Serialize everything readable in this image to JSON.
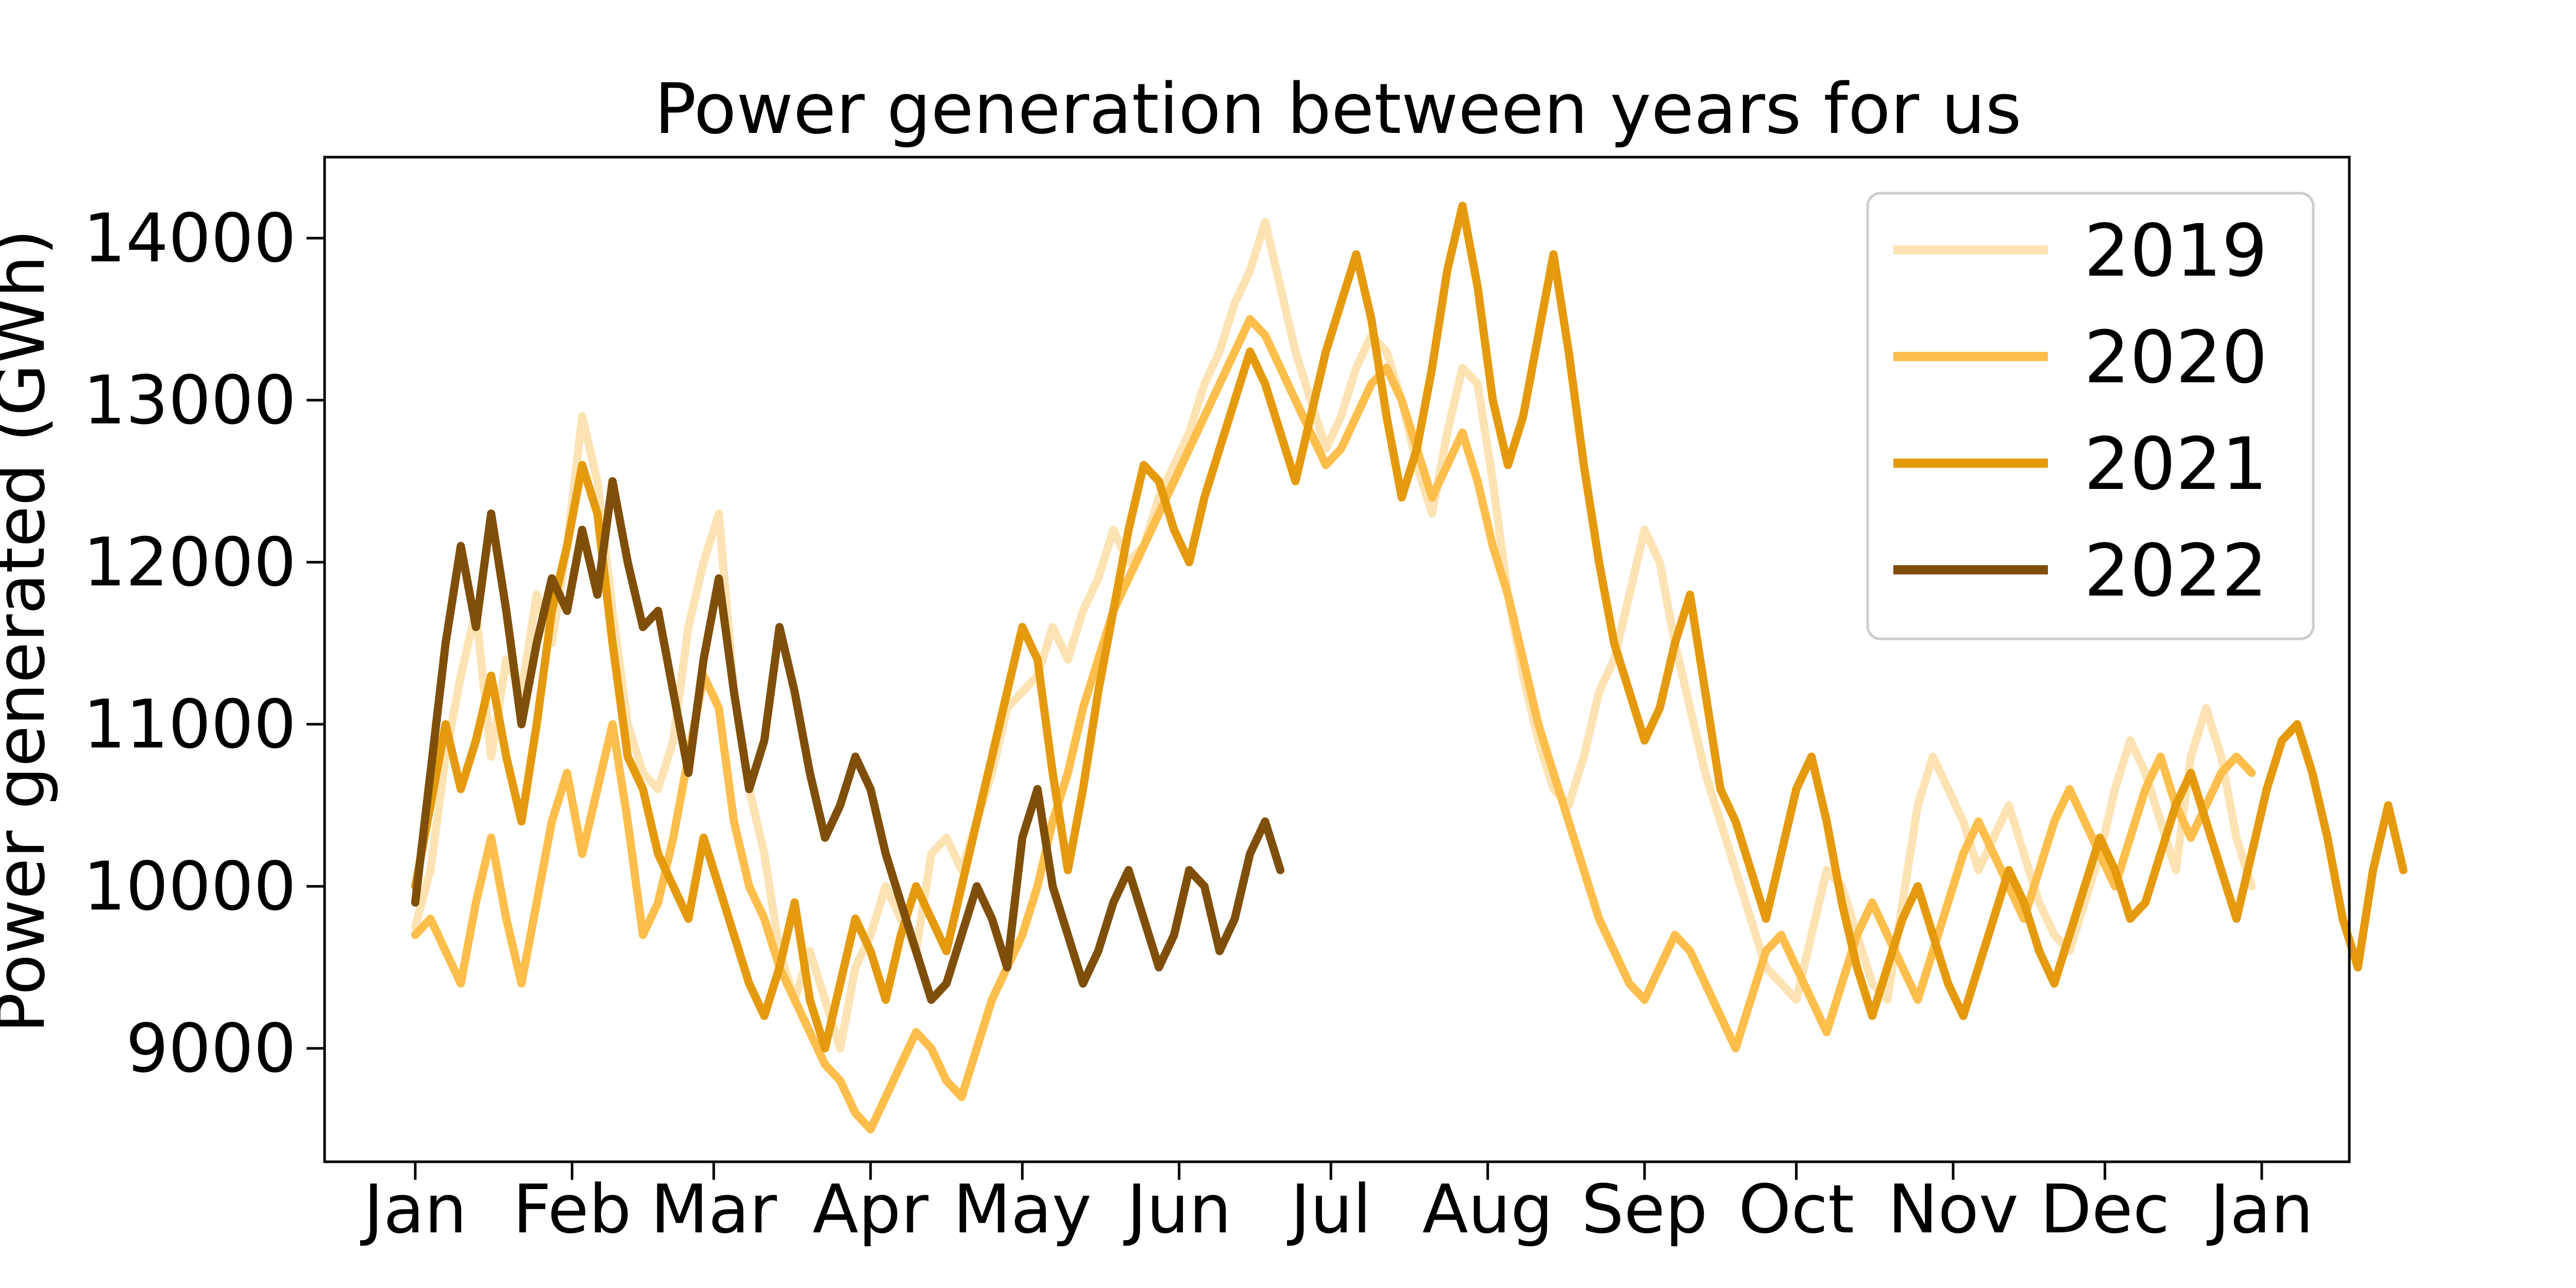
{
  "chart_data": {
    "type": "line",
    "title": "Power generation between years for us",
    "xlabel": "",
    "ylabel": "Power generated (GWh)",
    "x_ticks": [
      "Jan",
      "Feb",
      "Mar",
      "Apr",
      "May",
      "Jun",
      "Jul",
      "Aug",
      "Sep",
      "Oct",
      "Nov",
      "Dec",
      "Jan"
    ],
    "y_ticks": [
      9000,
      10000,
      11000,
      12000,
      13000,
      14000
    ],
    "ylim": [
      8300,
      14500
    ],
    "grid": false,
    "legend_position": "top-right",
    "sample_interval_days": 3,
    "series": [
      {
        "name": "2019",
        "color": "#fde3b4",
        "values": [
          9750,
          10100,
          10800,
          11300,
          11700,
          10800,
          11400,
          11200,
          11800,
          11500,
          12100,
          12900,
          12500,
          11700,
          11000,
          10700,
          10600,
          10900,
          11600,
          12000,
          12300,
          11200,
          10600,
          10200,
          9600,
          9300,
          9600,
          9300,
          9000,
          9500,
          9700,
          10000,
          9800,
          9600,
          10200,
          10300,
          10100,
          10400,
          10700,
          11100,
          11200,
          11300,
          11600,
          11400,
          11700,
          11900,
          12200,
          12000,
          12100,
          12400,
          12600,
          12800,
          13100,
          13300,
          13600,
          13800,
          14100,
          13700,
          13300,
          13000,
          12700,
          12900,
          13200,
          13400,
          13300,
          13000,
          12600,
          12300,
          12800,
          13200,
          13100,
          12500,
          11800,
          11300,
          10900,
          10600,
          10500,
          10800,
          11200,
          11400,
          11800,
          12200,
          12000,
          11500,
          11100,
          10700,
          10400,
          10100,
          9800,
          9500,
          9400,
          9300,
          9700,
          10100,
          10000,
          9700,
          9400,
          9300,
          9900,
          10500,
          10800,
          10600,
          10400,
          10100,
          10300,
          10500,
          10200,
          9900,
          9700,
          9600,
          9900,
          10200,
          10600,
          10900,
          10700,
          10400,
          10100,
          10800,
          11100,
          10800,
          10300,
          10000
        ]
      },
      {
        "name": "2020",
        "color": "#fdbe4c",
        "values": [
          9700,
          9800,
          9600,
          9400,
          9900,
          10300,
          9800,
          9400,
          9900,
          10400,
          10700,
          10200,
          10600,
          11000,
          10400,
          9700,
          9900,
          10300,
          10800,
          11300,
          11100,
          10400,
          10000,
          9800,
          9500,
          9300,
          9100,
          8900,
          8800,
          8600,
          8500,
          8700,
          8900,
          9100,
          9000,
          8800,
          8700,
          9000,
          9300,
          9500,
          9700,
          10000,
          10400,
          10700,
          11100,
          11400,
          11700,
          11900,
          12100,
          12300,
          12500,
          12700,
          12900,
          13100,
          13300,
          13500,
          13400,
          13200,
          13000,
          12800,
          12600,
          12700,
          12900,
          13100,
          13200,
          13000,
          12700,
          12400,
          12600,
          12800,
          12500,
          12100,
          11800,
          11400,
          11000,
          10700,
          10400,
          10100,
          9800,
          9600,
          9400,
          9300,
          9500,
          9700,
          9600,
          9400,
          9200,
          9000,
          9300,
          9600,
          9700,
          9500,
          9300,
          9100,
          9400,
          9700,
          9900,
          9700,
          9500,
          9300,
          9600,
          9900,
          10200,
          10400,
          10200,
          10000,
          9800,
          10100,
          10400,
          10600,
          10400,
          10200,
          10000,
          10300,
          10600,
          10800,
          10500,
          10300,
          10500,
          10700,
          10800,
          10700
        ]
      },
      {
        "name": "2021",
        "color": "#e49a0c",
        "values": [
          10000,
          10500,
          11000,
          10600,
          10900,
          11300,
          10800,
          10400,
          11000,
          11700,
          12100,
          12600,
          12300,
          11500,
          10800,
          10600,
          10200,
          10000,
          9800,
          10300,
          10000,
          9700,
          9400,
          9200,
          9500,
          9900,
          9300,
          9000,
          9400,
          9800,
          9600,
          9300,
          9700,
          10000,
          9800,
          9600,
          10000,
          10400,
          10800,
          11200,
          11600,
          11400,
          10700,
          10100,
          10600,
          11200,
          11700,
          12200,
          12600,
          12500,
          12200,
          12000,
          12400,
          12700,
          13000,
          13300,
          13100,
          12800,
          12500,
          12900,
          13300,
          13600,
          13900,
          13500,
          12900,
          12400,
          12700,
          13200,
          13800,
          14200,
          13700,
          13000,
          12600,
          12900,
          13400,
          13900,
          13300,
          12600,
          12000,
          11500,
          11200,
          10900,
          11100,
          11500,
          11800,
          11200,
          10600,
          10400,
          10100,
          9800,
          10200,
          10600,
          10800,
          10400,
          9900,
          9500,
          9200,
          9500,
          9800,
          10000,
          9700,
          9400,
          9200,
          9500,
          9800,
          10100,
          9900,
          9600,
          9400,
          9700,
          10000,
          10300,
          10100,
          9800,
          9900,
          10200,
          10500,
          10700,
          10400,
          10100,
          9800,
          10200,
          10600,
          10900,
          11000,
          10700,
          10300,
          9800,
          9500,
          10100,
          10500,
          10100
        ]
      },
      {
        "name": "2022",
        "color": "#7f4f0a",
        "values": [
          9900,
          10700,
          11500,
          12100,
          11600,
          12300,
          11700,
          11000,
          11500,
          11900,
          11700,
          12200,
          11800,
          12500,
          12000,
          11600,
          11700,
          11200,
          10700,
          11400,
          11900,
          11200,
          10600,
          10900,
          11600,
          11200,
          10700,
          10300,
          10500,
          10800,
          10600,
          10200,
          9900,
          9600,
          9300,
          9400,
          9700,
          10000,
          9800,
          9500,
          10300,
          10600,
          10000,
          9700,
          9400,
          9600,
          9900,
          10100,
          9800,
          9500,
          9700,
          10100,
          10000,
          9600,
          9800,
          10200,
          10400,
          10100
        ]
      }
    ]
  }
}
